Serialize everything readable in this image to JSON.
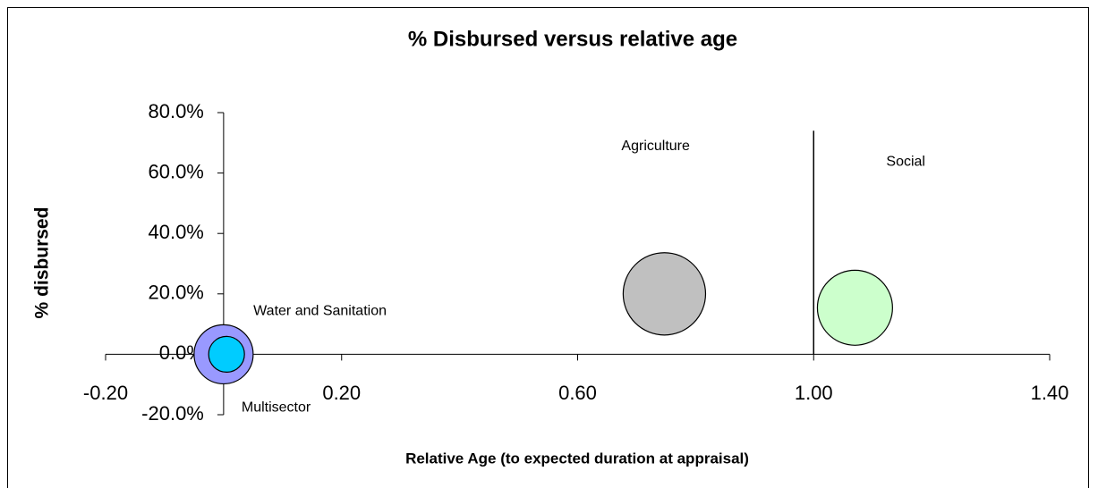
{
  "chart_data": {
    "type": "bubble",
    "title": "% Disbursed versus relative age",
    "xlabel": "Relative Age (to expected duration at appraisal)",
    "ylabel": "% disbursed",
    "xlim": [
      -0.2,
      1.4
    ],
    "ylim": [
      -20,
      80
    ],
    "xticks": [
      {
        "value": -0.2,
        "label": "-0.20"
      },
      {
        "value": 0.2,
        "label": "0.20"
      },
      {
        "value": 0.6,
        "label": "0.60"
      },
      {
        "value": 1.0,
        "label": "1.00"
      },
      {
        "value": 1.4,
        "label": "1.40"
      }
    ],
    "yticks": [
      {
        "value": 80,
        "label": "80.0%"
      },
      {
        "value": 60,
        "label": "60.0%"
      },
      {
        "value": 40,
        "label": "40.0%"
      },
      {
        "value": 20,
        "label": "20.0%"
      },
      {
        "value": 0,
        "label": "0.0%"
      },
      {
        "value": -20,
        "label": "-20.0%"
      }
    ],
    "reference_line": {
      "x": 1.0,
      "y_from": 0,
      "y_to": 74
    },
    "series": [
      {
        "name": "Multisector",
        "color": "#9999ff",
        "x": [
          0.0
        ],
        "values": [
          0.0
        ],
        "sizes": [
          10.9
        ]
      },
      {
        "name": "Water and Sanitation",
        "color": "#00ccff",
        "x": [
          0.005
        ],
        "values": [
          0.0
        ],
        "sizes": [
          4.0
        ]
      },
      {
        "name": "Agriculture",
        "color": "#c0c0c0",
        "x": [
          0.747
        ],
        "values": [
          20.0
        ],
        "sizes": [
          21.2
        ]
      },
      {
        "name": "Social",
        "color": "#ccffcc",
        "x": [
          1.07
        ],
        "values": [
          15.4
        ],
        "sizes": [
          17.6
        ]
      }
    ]
  }
}
